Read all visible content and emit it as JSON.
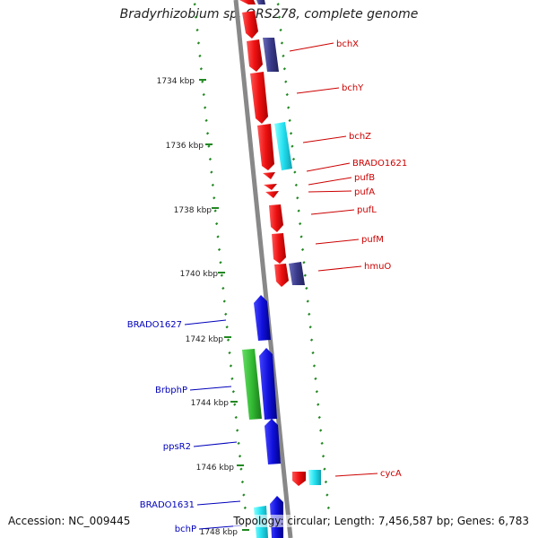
{
  "title": "Bradyrhizobium sp. ORS278, complete genome",
  "footer": {
    "accession": "Accession: NC_009445",
    "summary": "Topology: circular; Length: 7,456,587 bp; Genes: 6,783"
  },
  "colors": {
    "red": "#ee1111",
    "blue": "#1111dd",
    "navy": "#3a3a8c",
    "cyan": "#22e0f0",
    "green": "#33bb33",
    "tick_green": "#228822",
    "backbone": "#888888",
    "label_red": "#cc0000",
    "label_blue": "#0000bb"
  },
  "scale_labels": [
    "1734 kbp",
    "1736 kbp",
    "1738 kbp",
    "1740 kbp",
    "1742 kbp",
    "1744 kbp",
    "1746 kbp",
    "1748 kbp"
  ],
  "gene_labels_right": [
    "bchX",
    "bchY",
    "bchZ",
    "BRADO1621",
    "pufB",
    "pufA",
    "pufL",
    "pufM",
    "hmuO",
    "cycA"
  ],
  "gene_labels_left": [
    "BRADO1627",
    "BrbphP",
    "ppsR2",
    "BRADO1631",
    "bchP"
  ]
}
